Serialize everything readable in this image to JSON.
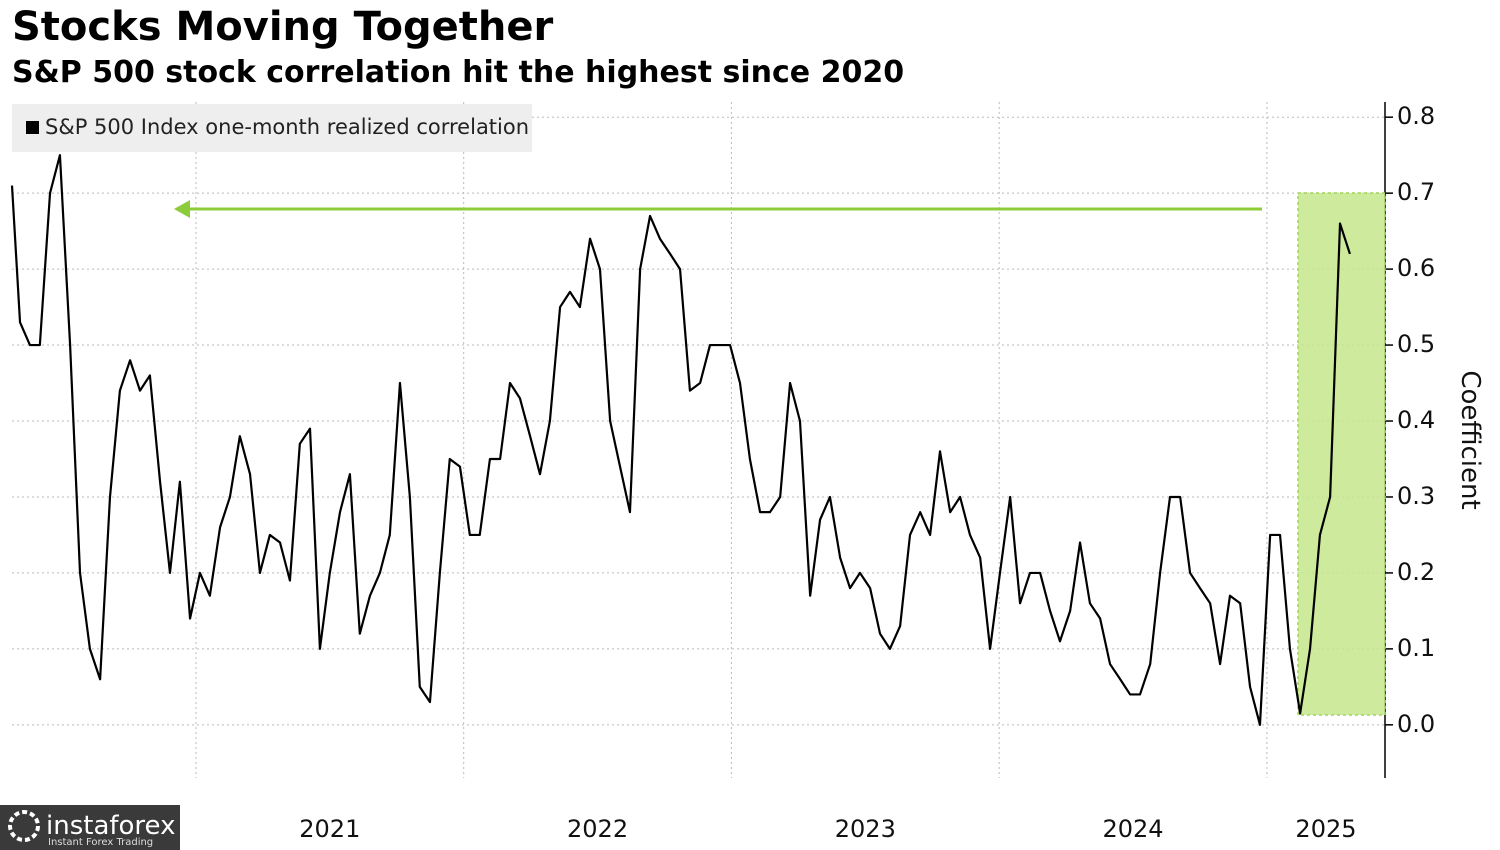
{
  "chart_data": {
    "type": "line",
    "title": "Stocks Moving Together",
    "subtitle": "S&P 500 stock correlation hit the highest since 2020",
    "y_label": "Coefficient",
    "x": [
      2020.313,
      2020.343,
      2020.38,
      2020.417,
      2020.455,
      2020.492,
      2020.53,
      2020.567,
      2020.604,
      2020.642,
      2020.679,
      2020.716,
      2020.754,
      2020.791,
      2020.828,
      2020.866,
      2020.903,
      2020.94,
      2020.978,
      2021.015,
      2021.052,
      2021.09,
      2021.127,
      2021.164,
      2021.202,
      2021.239,
      2021.276,
      2021.314,
      2021.351,
      2021.388,
      2021.426,
      2021.463,
      2021.5,
      2021.538,
      2021.575,
      2021.612,
      2021.65,
      2021.687,
      2021.724,
      2021.762,
      2021.799,
      2021.836,
      2021.874,
      2021.911,
      2021.948,
      2021.986,
      2022.023,
      2022.06,
      2022.098,
      2022.136,
      2022.173,
      2022.21,
      2022.248,
      2022.285,
      2022.322,
      2022.36,
      2022.397,
      2022.434,
      2022.472,
      2022.509,
      2022.547,
      2022.584,
      2022.621,
      2022.659,
      2022.696,
      2022.733,
      2022.771,
      2022.808,
      2022.845,
      2022.883,
      2022.92,
      2022.957,
      2022.995,
      2023.032,
      2023.069,
      2023.107,
      2023.144,
      2023.182,
      2023.219,
      2023.256,
      2023.294,
      2023.331,
      2023.368,
      2023.406,
      2023.443,
      2023.48,
      2023.518,
      2023.555,
      2023.592,
      2023.63,
      2023.667,
      2023.705,
      2023.742,
      2023.779,
      2023.817,
      2023.854,
      2023.891,
      2023.929,
      2023.966,
      2024.003,
      2024.041,
      2024.078,
      2024.115,
      2024.153,
      2024.19,
      2024.227,
      2024.265,
      2024.302,
      2024.339,
      2024.377,
      2024.414,
      2024.452,
      2024.489,
      2024.526,
      2024.564,
      2024.601,
      2024.638,
      2024.676,
      2024.713,
      2024.75,
      2024.788,
      2024.825,
      2024.862,
      2024.9,
      2024.937,
      2024.974,
      2025.012,
      2025.049,
      2025.086,
      2025.124,
      2025.161,
      2025.198,
      2025.236,
      2025.273,
      2025.31
    ],
    "series": [
      {
        "name": "S&P 500 Index one-month realized correlation",
        "color": "#000000",
        "values": [
          0.71,
          0.53,
          0.5,
          0.5,
          0.7,
          0.75,
          0.5,
          0.2,
          0.1,
          0.06,
          0.3,
          0.44,
          0.48,
          0.44,
          0.46,
          0.32,
          0.2,
          0.32,
          0.14,
          0.2,
          0.17,
          0.26,
          0.3,
          0.38,
          0.33,
          0.2,
          0.25,
          0.24,
          0.19,
          0.37,
          0.39,
          0.1,
          0.2,
          0.28,
          0.33,
          0.12,
          0.17,
          0.2,
          0.25,
          0.45,
          0.3,
          0.05,
          0.03,
          0.2,
          0.35,
          0.34,
          0.25,
          0.25,
          0.35,
          0.35,
          0.45,
          0.43,
          0.38,
          0.33,
          0.4,
          0.55,
          0.57,
          0.55,
          0.64,
          0.6,
          0.4,
          0.34,
          0.28,
          0.6,
          0.67,
          0.64,
          0.62,
          0.6,
          0.44,
          0.45,
          0.5,
          0.5,
          0.5,
          0.45,
          0.35,
          0.28,
          0.28,
          0.3,
          0.45,
          0.4,
          0.17,
          0.27,
          0.3,
          0.22,
          0.18,
          0.2,
          0.18,
          0.12,
          0.1,
          0.13,
          0.25,
          0.28,
          0.25,
          0.36,
          0.28,
          0.3,
          0.25,
          0.22,
          0.1,
          0.2,
          0.3,
          0.16,
          0.2,
          0.2,
          0.15,
          0.11,
          0.15,
          0.24,
          0.16,
          0.14,
          0.08,
          0.06,
          0.04,
          0.04,
          0.08,
          0.2,
          0.3,
          0.3,
          0.2,
          0.18,
          0.16,
          0.08,
          0.17,
          0.16,
          0.05,
          0.0,
          0.25,
          0.25,
          0.1,
          0.015,
          0.1,
          0.25,
          0.3,
          0.66,
          0.62
        ]
      }
    ],
    "xlim": [
      2020.313,
      2025.441
    ],
    "xticks": [
      2021,
      2022,
      2023,
      2024,
      2025
    ],
    "ylim": [
      -0.07,
      0.82
    ],
    "yticks": [
      {
        "value": 0,
        "label": "0.0"
      },
      0.1,
      0.2,
      0.3,
      0.4,
      0.5,
      0.6,
      0.7,
      0.8
    ],
    "grid": true,
    "legend": "top-left"
  },
  "watermark": {
    "brand": "instaforex",
    "tagline": "Instant Forex Trading"
  }
}
